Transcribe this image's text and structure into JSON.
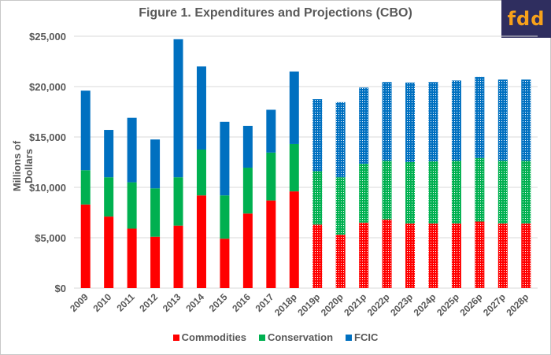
{
  "chart_data": {
    "type": "bar",
    "stacked": true,
    "title": "Figure 1. Expenditures and Projections (CBO)",
    "xlabel": "",
    "ylabel": "Millions of Dollars",
    "ylim": [
      0,
      25000
    ],
    "yticks": [
      0,
      5000,
      10000,
      15000,
      20000,
      25000
    ],
    "ytick_labels": [
      "$0",
      "$5,000",
      "$10,000",
      "$15,000",
      "$20,000",
      "$25,000"
    ],
    "grid": true,
    "legend_position": "bottom",
    "categories": [
      "2009",
      "2010",
      "2011",
      "2012",
      "2013",
      "2014",
      "2015",
      "2016",
      "2017",
      "2018p",
      "2019p",
      "2020p",
      "2021p",
      "2022p",
      "2023p",
      "2024p",
      "2025p",
      "2026p",
      "2027p",
      "2028p"
    ],
    "projected_from_index": 10,
    "series": [
      {
        "name": "Commodities",
        "color": "#ff0000",
        "values": [
          8300,
          7100,
          5900,
          5100,
          6200,
          9200,
          4900,
          7400,
          8700,
          9600,
          6300,
          5300,
          6500,
          6800,
          6400,
          6400,
          6400,
          6600,
          6400,
          6400
        ]
      },
      {
        "name": "Conservation",
        "color": "#00b050",
        "values": [
          3400,
          3900,
          4600,
          4800,
          4800,
          4550,
          4300,
          4550,
          4750,
          4700,
          5300,
          5700,
          5850,
          5850,
          6100,
          6200,
          6250,
          6300,
          6250,
          6250
        ]
      },
      {
        "name": "FCIC",
        "color": "#0070c0",
        "values": [
          7900,
          4700,
          6400,
          4850,
          13700,
          8250,
          7300,
          4150,
          4250,
          7200,
          7150,
          7450,
          7550,
          7800,
          7900,
          7850,
          7950,
          8050,
          8050,
          8050
        ]
      }
    ]
  },
  "logo": {
    "text": "fdd"
  }
}
